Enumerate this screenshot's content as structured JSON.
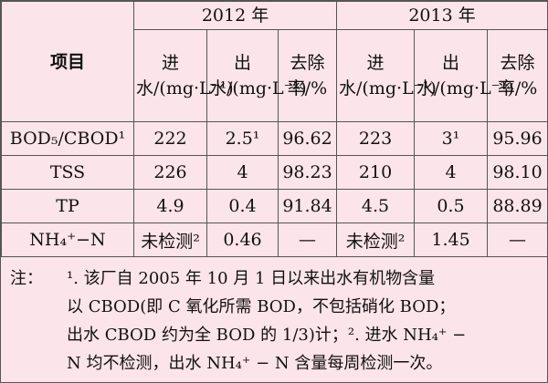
{
  "table": {
    "header": {
      "item": "项目",
      "years": [
        "2012 年",
        "2013 年"
      ],
      "columns": [
        "进水/(mg·L⁻¹)",
        "出水/(mg·L⁻¹)",
        "去除率/%"
      ]
    },
    "rows": [
      [
        "BOD₅/CBOD¹",
        "222",
        "2.5¹",
        "96.62",
        "223",
        "3¹",
        "95.96"
      ],
      [
        "TSS",
        "226",
        "4",
        "98.23",
        "210",
        "4",
        "98.10"
      ],
      [
        "TP",
        "4.9",
        "0.4",
        "91.84",
        "4.5",
        "0.5",
        "88.89"
      ],
      [
        "NH₄⁺−N",
        "未检测²",
        "0.46",
        "—",
        "未检测²",
        "1.45",
        "—"
      ]
    ]
  },
  "note": {
    "label": "注：",
    "lines": [
      "¹. 该厂自 2005 年 10 月 1 日以来出水有机物含量",
      "以 CBOD(即 C 氧化所需 BOD，不包括硝化 BOD；",
      "出水 CBOD 约为全 BOD 的 1/3)计；². 进水 NH₄⁺ −",
      "N 均不检测，出水 NH₄⁺ − N 含量每周检测一次。"
    ]
  }
}
